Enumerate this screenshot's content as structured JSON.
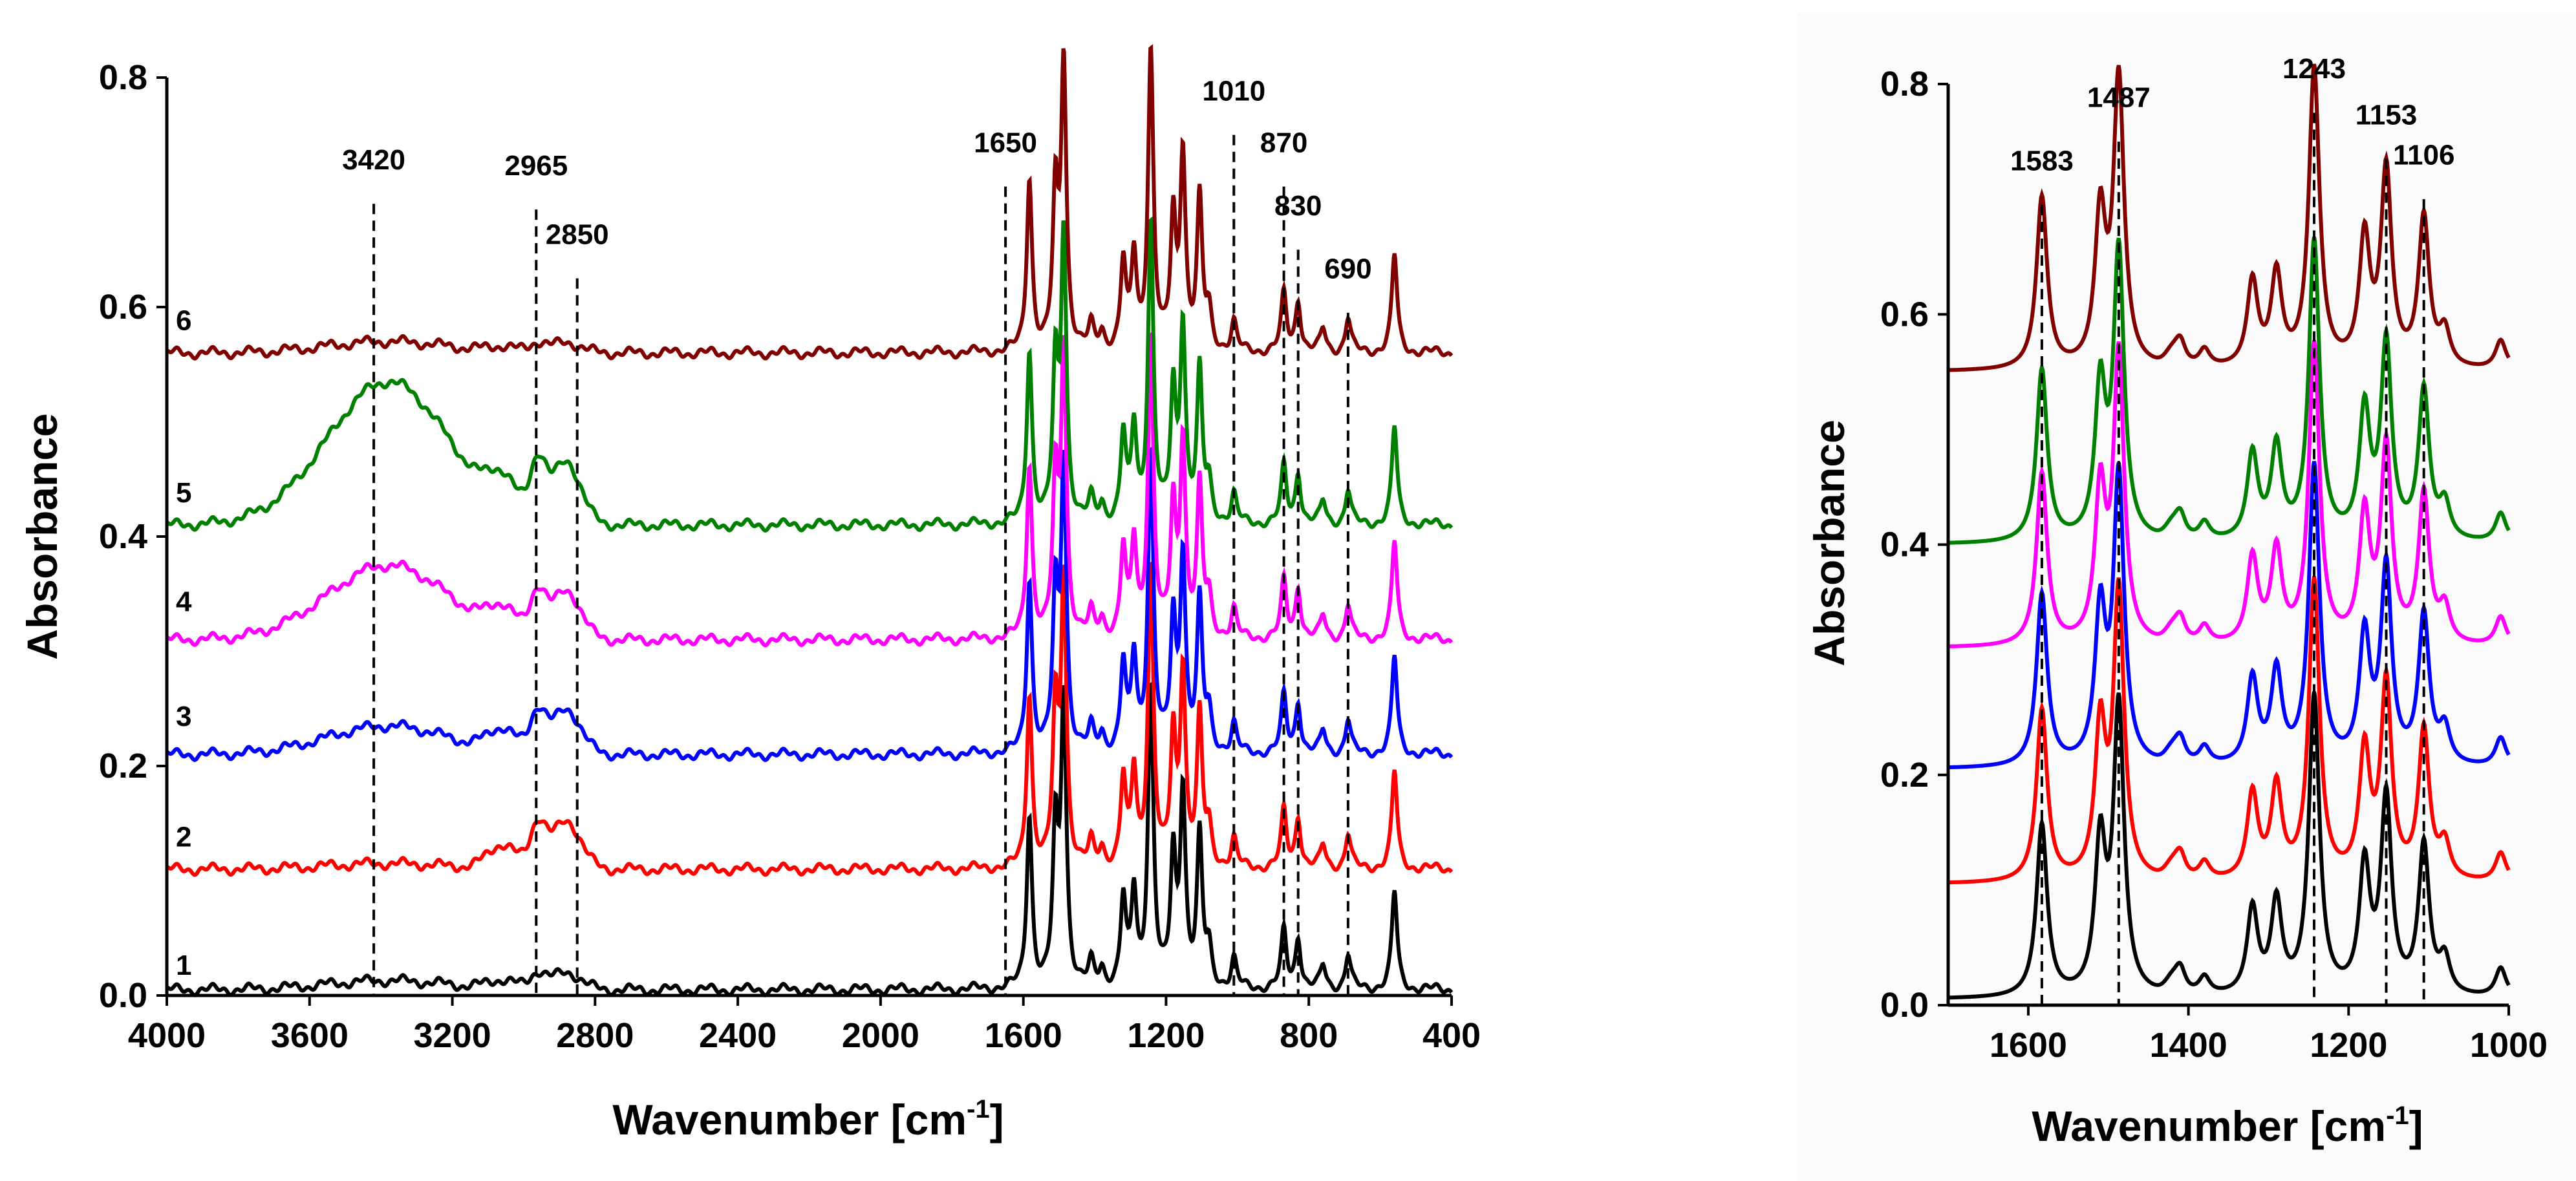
{
  "chart_data": [
    {
      "type": "line",
      "title": "",
      "xlabel": "Wavenumber [cm",
      "xlabel_sup": "-1",
      "xlabel_close": "]",
      "ylabel": "Absorbance",
      "xlim": [
        4000,
        400
      ],
      "ylim": [
        0.0,
        0.8
      ],
      "x_ticks": [
        4000,
        3600,
        3200,
        2800,
        2400,
        2000,
        1600,
        1200,
        800,
        400
      ],
      "x_tick_labels": [
        "4000",
        "3600",
        "3200",
        "2800",
        "2400",
        "2000",
        "1600",
        "1200",
        "800",
        "400"
      ],
      "y_ticks": [
        0.0,
        0.2,
        0.4,
        0.6,
        0.8
      ],
      "y_tick_labels": [
        "0.0",
        "0.2",
        "0.4",
        "0.6",
        "0.8"
      ],
      "grid": false,
      "peak_markers": [
        {
          "x": 3420,
          "label": "3420",
          "label_y": 0.72
        },
        {
          "x": 2965,
          "label": "2965",
          "label_y": 0.715
        },
        {
          "x": 2850,
          "label": "2850",
          "label_y": 0.655
        },
        {
          "x": 1650,
          "label": "1650",
          "label_y": 0.735
        },
        {
          "x": 1010,
          "label": "1010",
          "label_y": 0.78
        },
        {
          "x": 870,
          "label": "870",
          "label_y": 0.735
        },
        {
          "x": 830,
          "label": "830",
          "label_y": 0.68
        },
        {
          "x": 690,
          "label": "690",
          "label_y": 0.625
        }
      ],
      "series": [
        {
          "name": "1",
          "color": "#000000",
          "offset": 0.005,
          "broad_3400": 0.008,
          "ch_band": 0.025,
          "label_y": 0.018
        },
        {
          "name": "2",
          "color": "#ff0000",
          "offset": 0.11,
          "broad_3400": 0.005,
          "ch_band": 0.07,
          "label_y": 0.13
        },
        {
          "name": "3",
          "color": "#0000ff",
          "offset": 0.21,
          "broad_3400": 0.025,
          "ch_band": 0.065,
          "label_y": 0.235
        },
        {
          "name": "4",
          "color": "#ff00ff",
          "offset": 0.31,
          "broad_3400": 0.065,
          "ch_band": 0.07,
          "label_y": 0.335
        },
        {
          "name": "5",
          "color": "#008000",
          "offset": 0.41,
          "broad_3400": 0.125,
          "ch_band": 0.09,
          "label_y": 0.43
        },
        {
          "name": "6",
          "color": "#800000",
          "offset": 0.56,
          "broad_3400": 0.01,
          "ch_band": 0.015,
          "label_y": 0.58
        }
      ],
      "fingerprint_peaks": [
        {
          "x": 1583,
          "h": 0.15
        },
        {
          "x": 1510,
          "h": 0.13
        },
        {
          "x": 1487,
          "h": 0.25
        },
        {
          "x": 1410,
          "h": 0.02
        },
        {
          "x": 1380,
          "h": 0.015
        },
        {
          "x": 1320,
          "h": 0.075
        },
        {
          "x": 1290,
          "h": 0.08
        },
        {
          "x": 1243,
          "h": 0.26
        },
        {
          "x": 1180,
          "h": 0.11
        },
        {
          "x": 1153,
          "h": 0.17
        },
        {
          "x": 1106,
          "h": 0.13
        },
        {
          "x": 1080,
          "h": 0.03
        },
        {
          "x": 1010,
          "h": 0.025
        },
        {
          "x": 870,
          "h": 0.05
        },
        {
          "x": 830,
          "h": 0.045
        },
        {
          "x": 760,
          "h": 0.02
        },
        {
          "x": 690,
          "h": 0.03
        },
        {
          "x": 560,
          "h": 0.085
        }
      ]
    },
    {
      "type": "line",
      "title": "",
      "xlabel": "Wavenumber [cm",
      "xlabel_sup": "-1",
      "xlabel_close": "]",
      "ylabel": "Absorbance",
      "xlim": [
        1700,
        1000
      ],
      "ylim": [
        0.0,
        0.8
      ],
      "x_ticks": [
        1600,
        1400,
        1200,
        1000
      ],
      "x_tick_labels": [
        "1600",
        "1400",
        "1200",
        "1000"
      ],
      "y_ticks": [
        0.0,
        0.2,
        0.4,
        0.6,
        0.8
      ],
      "y_tick_labels": [
        "0.0",
        "0.2",
        "0.4",
        "0.6",
        "0.8"
      ],
      "grid": false,
      "peak_markers": [
        {
          "x": 1583,
          "label": "1583",
          "label_y": 0.725
        },
        {
          "x": 1487,
          "label": "1487",
          "label_y": 0.78
        },
        {
          "x": 1243,
          "label": "1243",
          "label_y": 0.805
        },
        {
          "x": 1153,
          "label": "1153",
          "label_y": 0.765
        },
        {
          "x": 1106,
          "label": "1106",
          "label_y": 0.73
        }
      ],
      "series": [
        {
          "name": "1",
          "color": "#000000",
          "offset": 0.005
        },
        {
          "name": "2",
          "color": "#ff0000",
          "offset": 0.105
        },
        {
          "name": "3",
          "color": "#0000ff",
          "offset": 0.205
        },
        {
          "name": "4",
          "color": "#ff00ff",
          "offset": 0.31
        },
        {
          "name": "5",
          "color": "#008000",
          "offset": 0.4
        },
        {
          "name": "6",
          "color": "#800000",
          "offset": 0.55
        }
      ]
    }
  ]
}
